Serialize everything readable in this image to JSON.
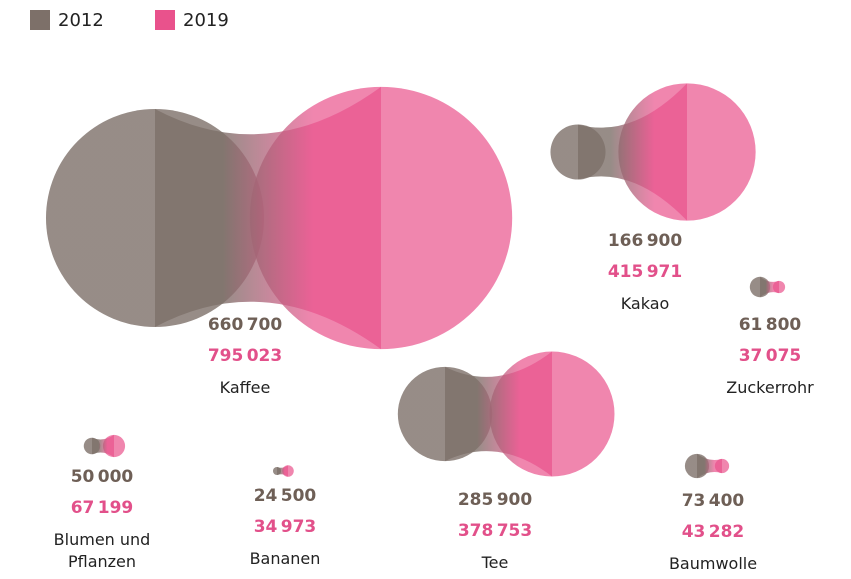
{
  "chart_data": {
    "type": "bubble",
    "categories": [
      "Kaffee",
      "Kakao",
      "Zuckerrohr",
      "Blumen und Pflanzen",
      "Bananen",
      "Tee",
      "Baumwolle"
    ],
    "series": [
      {
        "name": "2012",
        "color": "#7d7069",
        "values": [
          660700,
          166900,
          61800,
          50000,
          24500,
          285900,
          73400
        ],
        "value_labels": [
          "660 700",
          "166 900",
          "61 800",
          "50 000",
          "24 500",
          "285 900",
          "73 400"
        ]
      },
      {
        "name": "2019",
        "color": "#e9528c",
        "values": [
          795023,
          415971,
          37075,
          67199,
          34973,
          378753,
          43282
        ],
        "value_labels": [
          "795 023",
          "415 971",
          "37 075",
          "67 199",
          "34 973",
          "378 753",
          "43 282"
        ]
      }
    ],
    "legend": "top-left"
  }
}
